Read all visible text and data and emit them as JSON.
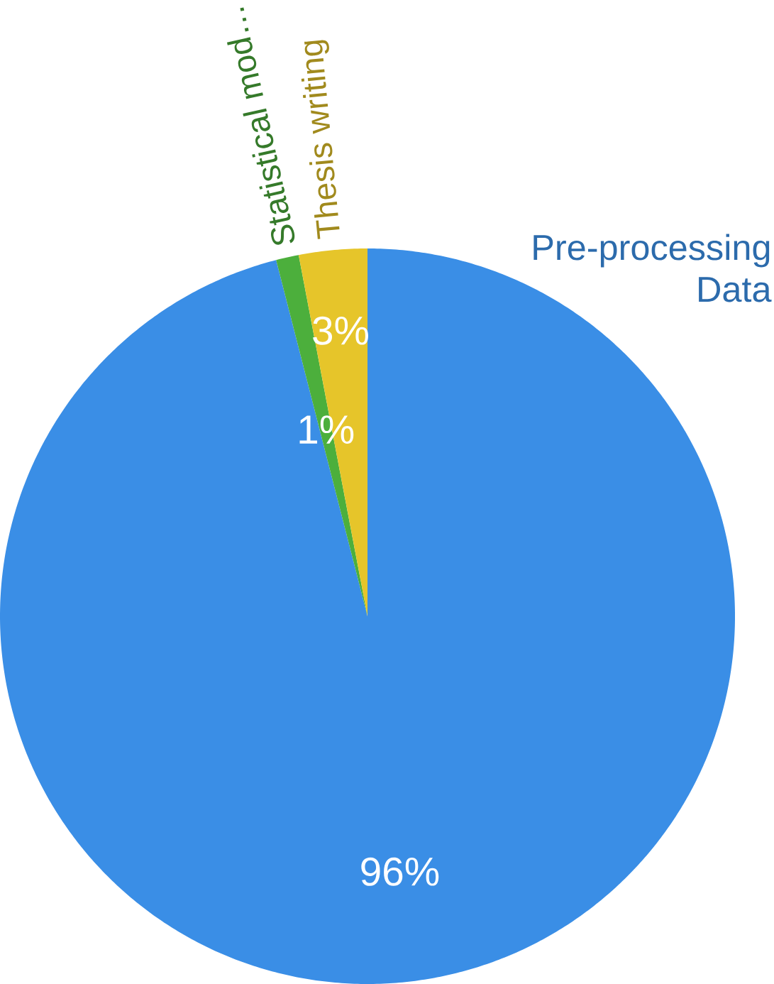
{
  "chart_data": {
    "type": "pie",
    "categories": [
      "Pre-processing Data",
      "Statistical mod…",
      "Thesis writing"
    ],
    "values": [
      96,
      1,
      3
    ],
    "colors": [
      "#3a8ee6",
      "#4caf3c",
      "#e6c52a"
    ],
    "value_labels": [
      "96%",
      "1%",
      "3%"
    ]
  }
}
